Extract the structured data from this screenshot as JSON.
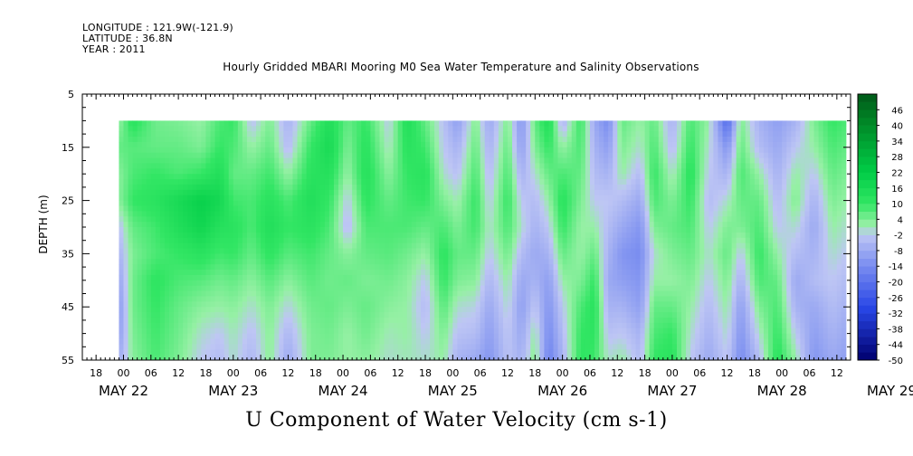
{
  "header": {
    "longitude": "LONGITUDE : 121.9W(-121.9)",
    "latitude": "LATITUDE : 36.8N",
    "year": "YEAR : 2011"
  },
  "chart_data": {
    "type": "heatmap",
    "title": "Hourly Gridded MBARI Mooring M0 Sea Water Temperature and Salinity Observations",
    "xlabel": "U Component of Water Velocity (cm s-1)",
    "ylabel": "DEPTH (m)",
    "y_ticks": [
      5,
      15,
      25,
      35,
      45,
      55
    ],
    "ylim": [
      55,
      5
    ],
    "y_reversed": true,
    "data_depth_range": [
      10,
      55
    ],
    "x_hour_ticks": [
      "18",
      "00",
      "06",
      "12",
      "18",
      "00",
      "06",
      "12",
      "18",
      "00",
      "06",
      "12",
      "18",
      "00",
      "06",
      "12",
      "18",
      "00",
      "06",
      "12",
      "18",
      "00",
      "06",
      "12",
      "18",
      "00",
      "06",
      "12"
    ],
    "x_day_labels": [
      "MAY 22",
      "MAY 23",
      "MAY 24",
      "MAY 25",
      "MAY 26",
      "MAY 27",
      "MAY 28",
      "MAY 29"
    ],
    "x_range_hours": [
      -9,
      159
    ],
    "x_data_start_hours": -1,
    "x_data_end_hours": 158,
    "colorbar_labels": [
      "46",
      "40",
      "34",
      "28",
      "22",
      "16",
      "10",
      "4",
      "-2",
      "-8",
      "-14",
      "-20",
      "-26",
      "-32",
      "-38",
      "-44",
      "-50"
    ],
    "colorbar_range": [
      -50,
      52
    ],
    "colors": {
      "strong_green": "#00b934",
      "green": "#00e04a",
      "light_green": "#8ff0a0",
      "pale_blue": "#b8c4f2",
      "blue": "#8c9ef0",
      "dark_blue": "#3c5ae6",
      "navy": "#000066"
    },
    "profiles": [
      {
        "t": -1,
        "v": [
          2,
          6,
          3,
          3,
          -3,
          -6,
          -9,
          -11,
          -10,
          -7
        ]
      },
      {
        "t": 2,
        "v": [
          12,
          7,
          8,
          10,
          6,
          4,
          5,
          5,
          4,
          3
        ]
      },
      {
        "t": 7,
        "v": [
          5,
          6,
          10,
          12,
          9,
          8,
          11,
          10,
          9,
          8
        ]
      },
      {
        "t": 12,
        "v": [
          4,
          6,
          8,
          16,
          14,
          10,
          8,
          6,
          5,
          4
        ]
      },
      {
        "t": 17,
        "v": [
          2,
          4,
          10,
          20,
          18,
          12,
          7,
          3,
          0,
          -2
        ]
      },
      {
        "t": 21,
        "v": [
          8,
          10,
          14,
          17,
          13,
          9,
          5,
          2,
          -2,
          -4
        ]
      },
      {
        "t": 24,
        "v": [
          10,
          8,
          6,
          9,
          12,
          10,
          6,
          3,
          1,
          0
        ]
      },
      {
        "t": 28,
        "v": [
          -3,
          2,
          6,
          8,
          8,
          6,
          3,
          0,
          -3,
          -5
        ]
      },
      {
        "t": 32,
        "v": [
          4,
          6,
          9,
          12,
          14,
          11,
          7,
          4,
          3,
          3
        ]
      },
      {
        "t": 36,
        "v": [
          -6,
          -4,
          2,
          8,
          10,
          7,
          3,
          -1,
          -5,
          -8
        ]
      },
      {
        "t": 41,
        "v": [
          6,
          10,
          12,
          14,
          12,
          9,
          7,
          5,
          4,
          4
        ]
      },
      {
        "t": 45,
        "v": [
          14,
          16,
          13,
          10,
          8,
          6,
          5,
          6,
          5,
          4
        ]
      },
      {
        "t": 49,
        "v": [
          6,
          4,
          2,
          -2,
          -4,
          3,
          6,
          4,
          2,
          2
        ]
      },
      {
        "t": 53,
        "v": [
          10,
          12,
          13,
          11,
          8,
          6,
          4,
          6,
          5,
          3
        ]
      },
      {
        "t": 58,
        "v": [
          -2,
          0,
          3,
          6,
          8,
          7,
          5,
          3,
          1,
          0
        ]
      },
      {
        "t": 62,
        "v": [
          14,
          12,
          10,
          9,
          8,
          5,
          3,
          2,
          2,
          1
        ]
      },
      {
        "t": 66,
        "v": [
          6,
          9,
          12,
          10,
          6,
          2,
          -2,
          -4,
          -2,
          0
        ]
      },
      {
        "t": 70,
        "v": [
          -3,
          -2,
          0,
          4,
          8,
          11,
          10,
          7,
          4,
          2
        ]
      },
      {
        "t": 73,
        "v": [
          -10,
          -6,
          -3,
          1,
          4,
          6,
          4,
          0,
          -3,
          -6
        ]
      },
      {
        "t": 77,
        "v": [
          4,
          6,
          8,
          10,
          9,
          6,
          3,
          -1,
          -4,
          -8
        ]
      },
      {
        "t": 80,
        "v": [
          -8,
          -6,
          -4,
          -2,
          0,
          -2,
          -5,
          -8,
          -10,
          -12
        ]
      },
      {
        "t": 84,
        "v": [
          4,
          6,
          8,
          10,
          8,
          5,
          2,
          0,
          -2,
          -3
        ]
      },
      {
        "t": 87,
        "v": [
          -12,
          -10,
          -6,
          -2,
          0,
          -4,
          -8,
          -10,
          -8,
          -6
        ]
      },
      {
        "t": 90,
        "v": [
          6,
          4,
          0,
          -4,
          -6,
          -8,
          -6,
          -2,
          2,
          4
        ]
      },
      {
        "t": 93,
        "v": [
          14,
          10,
          6,
          2,
          -2,
          -6,
          -10,
          -12,
          -14,
          -16
        ]
      },
      {
        "t": 96,
        "v": [
          -6,
          2,
          8,
          12,
          10,
          6,
          2,
          -2,
          -4,
          -6
        ]
      },
      {
        "t": 100,
        "v": [
          10,
          8,
          6,
          4,
          2,
          2,
          4,
          8,
          10,
          11
        ]
      },
      {
        "t": 103,
        "v": [
          -8,
          -6,
          -4,
          -2,
          2,
          6,
          10,
          12,
          11,
          9
        ]
      },
      {
        "t": 106,
        "v": [
          -14,
          -10,
          -6,
          -2,
          -4,
          -6,
          -8,
          -6,
          -3,
          0
        ]
      },
      {
        "t": 109,
        "v": [
          6,
          4,
          2,
          -4,
          -8,
          -12,
          -10,
          -6,
          -2,
          2
        ]
      },
      {
        "t": 113,
        "v": [
          2,
          0,
          -4,
          -8,
          -12,
          -14,
          -12,
          -10,
          -6,
          -4
        ]
      },
      {
        "t": 116,
        "v": [
          6,
          8,
          10,
          8,
          4,
          0,
          2,
          6,
          8,
          10
        ]
      },
      {
        "t": 120,
        "v": [
          -6,
          -4,
          0,
          4,
          6,
          4,
          2,
          6,
          10,
          12
        ]
      },
      {
        "t": 124,
        "v": [
          8,
          10,
          12,
          10,
          8,
          6,
          4,
          2,
          0,
          -2
        ]
      },
      {
        "t": 128,
        "v": [
          2,
          0,
          -2,
          -4,
          -2,
          0,
          -2,
          -4,
          -6,
          -8
        ]
      },
      {
        "t": 132,
        "v": [
          -22,
          -12,
          -6,
          0,
          4,
          6,
          4,
          2,
          0,
          -2
        ]
      },
      {
        "t": 135,
        "v": [
          4,
          6,
          8,
          6,
          4,
          -2,
          -6,
          -10,
          -12,
          -14
        ]
      },
      {
        "t": 139,
        "v": [
          -6,
          -4,
          2,
          6,
          8,
          10,
          8,
          4,
          0,
          -4
        ]
      },
      {
        "t": 143,
        "v": [
          -10,
          -8,
          -6,
          -4,
          -2,
          2,
          6,
          8,
          10,
          12
        ]
      },
      {
        "t": 147,
        "v": [
          -6,
          -2,
          2,
          4,
          0,
          -4,
          -8,
          -6,
          -2,
          2
        ]
      },
      {
        "t": 151,
        "v": [
          4,
          2,
          -2,
          -6,
          -8,
          -6,
          -4,
          -8,
          -10,
          -12
        ]
      },
      {
        "t": 155,
        "v": [
          10,
          8,
          6,
          4,
          2,
          0,
          -2,
          -4,
          -6,
          -8
        ]
      },
      {
        "t": 158,
        "v": [
          8,
          6,
          4,
          2,
          0,
          -2,
          -4,
          -6,
          -8,
          -10
        ]
      }
    ]
  }
}
